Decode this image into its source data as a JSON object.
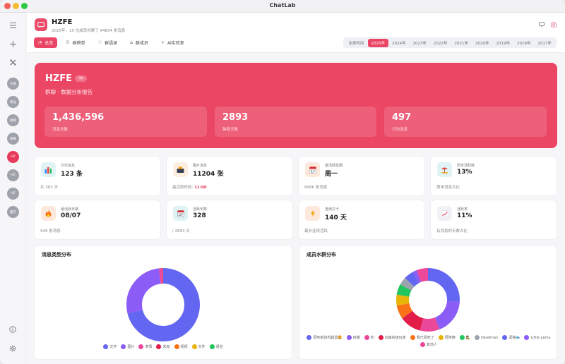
{
  "window": {
    "title": "ChatLab"
  },
  "sidebar": {
    "top_icons": [
      {
        "name": "menu-icon",
        "glyph": "≡"
      },
      {
        "name": "plus-icon",
        "glyph": "+"
      },
      {
        "name": "tools-icon",
        "glyph": "✕"
      }
    ],
    "avatars": [
      {
        "label": "咒语"
      },
      {
        "label": "修仙"
      },
      {
        "label": "群聊"
      },
      {
        "label": "来来"
      },
      {
        "label": "HZ",
        "active": true
      },
      {
        "label": "HZ"
      },
      {
        "label": "HZ"
      },
      {
        "label": "骡子"
      }
    ],
    "bottom_icons": [
      {
        "name": "info-icon",
        "glyph": "ⓘ"
      },
      {
        "name": "settings-icon",
        "glyph": "⚙"
      }
    ]
  },
  "header": {
    "group_name": "HZFE",
    "subtitle": "2025年，15 位成员共聊了 44854 条消息",
    "tabs": [
      {
        "label": "总览",
        "icon": "◔",
        "active": true
      },
      {
        "label": "群榜单",
        "icon": "♖"
      },
      {
        "label": "群语录",
        "icon": "♡"
      },
      {
        "label": "群成员",
        "icon": "⌂"
      },
      {
        "label": "AI实验室",
        "icon": "✧"
      }
    ],
    "years": [
      "全部时间",
      "2025年",
      "2024年",
      "2023年",
      "2022年",
      "2021年",
      "2020年",
      "2019年",
      "2018年",
      "2017年"
    ],
    "active_year": "2025年"
  },
  "hero": {
    "title": "HZFE",
    "badge": "QQ",
    "subtitle": "群聊 · 数据分析报告",
    "stats": [
      {
        "value": "1,436,596",
        "label": "消息总数"
      },
      {
        "value": "2893",
        "label": "跨度天数"
      },
      {
        "value": "497",
        "label": "日均消息"
      }
    ]
  },
  "stats": [
    {
      "label": "日均消息",
      "value": "123 条",
      "note": "共 365 天",
      "icon": "📊",
      "icon_bg": "#dff3f5"
    },
    {
      "label": "图片消息",
      "value": "11204 张",
      "note_prefix": "最活跃时段: ",
      "note_hl": "11:00",
      "icon": "🗃",
      "icon_bg": "#fdeee2"
    },
    {
      "label": "最活跃星期",
      "value": "周一",
      "note": "8486 条消息",
      "icon": "📅",
      "icon_bg": "#fde8dc"
    },
    {
      "label": "周末活跃度",
      "value": "13%",
      "note": "周末消息占比",
      "icon": "⛱",
      "icon_bg": "#dff3f5"
    },
    {
      "label": "最活跃日期",
      "value": "08/07",
      "note": "949 条消息",
      "icon": "🔥",
      "icon_bg": "#fde8dc"
    },
    {
      "label": "活跃天数",
      "value": "328",
      "note": "/ 2893 天",
      "icon": "📆",
      "icon_bg": "#dff3f5"
    },
    {
      "label": "连续打卡",
      "value": "140 天",
      "note": "最长连续活跃",
      "icon": "⚡",
      "icon_bg": "#fde8dc"
    },
    {
      "label": "活跃率",
      "value": "11%",
      "note": "有消息的天数占比",
      "icon": "📈",
      "icon_bg": "#f1f2f5"
    }
  ],
  "chart_data": [
    {
      "type": "pie",
      "title": "消息类型分布",
      "categories": [
        "文字",
        "图片",
        "表情",
        "未知",
        "视频",
        "文件",
        "语音"
      ],
      "values": [
        71,
        27,
        1.6,
        0.2,
        0.1,
        0.05,
        0.05
      ],
      "colors": [
        "#6366f1",
        "#8b5cf6",
        "#ec4899",
        "#e11d48",
        "#f97316",
        "#eab308",
        "#22c55e"
      ],
      "legend_position": "bottom"
    },
    {
      "type": "pie",
      "title": "成员水群分布",
      "categories": [
        "原味板烧鸡腿堡🍔",
        "夜猫",
        "你",
        "动森初级玩家",
        "我已经死了",
        "周阿姨",
        "🕵",
        "Deadman",
        "潇猫🐟",
        "Little yema",
        "其他人"
      ],
      "values": [
        26,
        18,
        10,
        11,
        7,
        5.5,
        5.5,
        4,
        5,
        2,
        6
      ],
      "colors": [
        "#6366f1",
        "#8b5cf6",
        "#ec4899",
        "#e11d48",
        "#f97316",
        "#eab308",
        "#22c55e",
        "#9ca3af",
        "#6366f1",
        "#8b5cf6",
        "#ec4899"
      ],
      "legend_position": "bottom"
    }
  ]
}
